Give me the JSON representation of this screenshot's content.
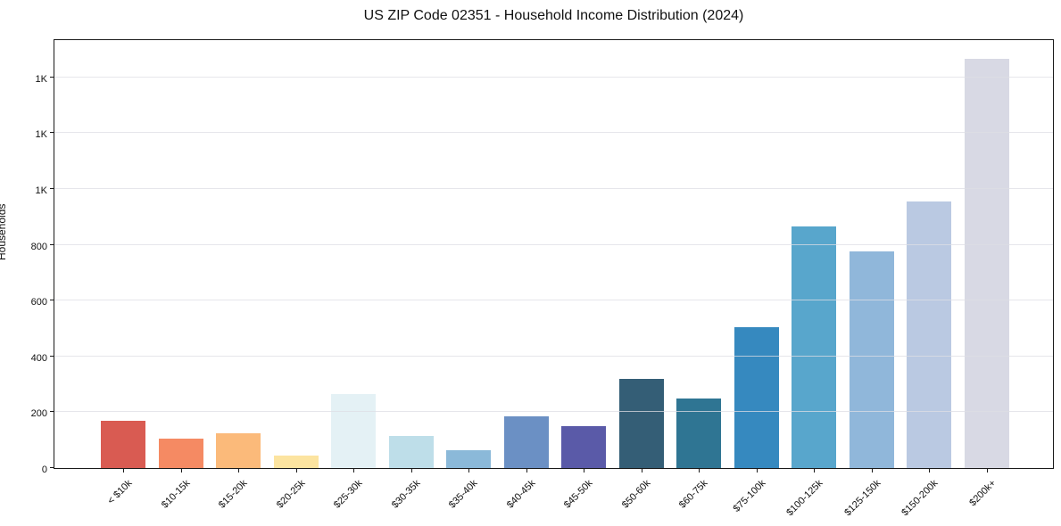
{
  "header": {
    "title": "US ZIP Code 02351 - Household Income Distribution (2024)"
  },
  "chart_data": {
    "type": "bar",
    "title": "US ZIP Code 02351 - Household Income Distribution (2024)",
    "xlabel": "",
    "ylabel": "Households",
    "categories": [
      "< $10k",
      "$10-15k",
      "$15-20k",
      "$20-25k",
      "$25-30k",
      "$30-35k",
      "$35-40k",
      "$40-45k",
      "$45-50k",
      "$50-60k",
      "$60-75k",
      "$75-100k",
      "$100-125k",
      "$125-150k",
      "$150-200k",
      "$200k+"
    ],
    "values": [
      170,
      105,
      125,
      45,
      265,
      115,
      65,
      185,
      150,
      320,
      250,
      505,
      865,
      775,
      955,
      1465
    ],
    "bar_colors": [
      "#d95b52",
      "#f58a63",
      "#fbba7a",
      "#fce4a0",
      "#e4f1f5",
      "#bedee9",
      "#8bb9d9",
      "#6b90c4",
      "#5a5aa8",
      "#345e76",
      "#2f7593",
      "#3689bf",
      "#58a6cc",
      "#90b7da",
      "#bac9e2",
      "#d8d9e4"
    ],
    "y_tick_values": [
      0,
      200,
      400,
      600,
      800,
      1000,
      1200,
      1400
    ],
    "y_tick_labels": [
      "0",
      "200",
      "400",
      "600",
      "800",
      "1K",
      "1K",
      "1K"
    ],
    "ylim": [
      0,
      1540
    ],
    "grid": "horizontal",
    "legend_position": "none",
    "x_tick_rotation_deg": 45
  }
}
